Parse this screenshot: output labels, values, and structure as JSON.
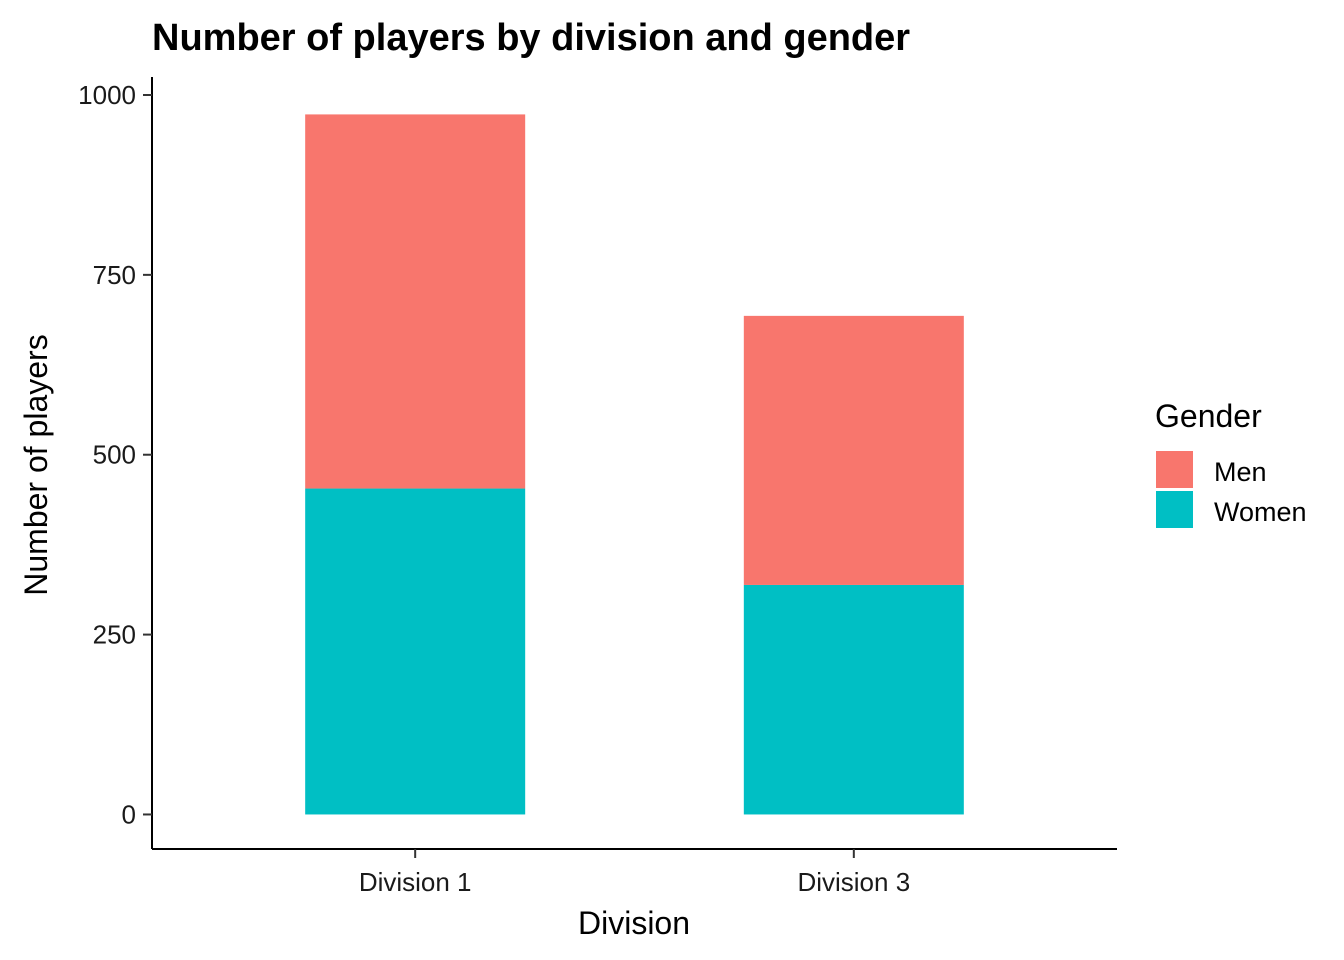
{
  "chart_data": {
    "type": "bar",
    "stacked": true,
    "title": "Number of players by division and gender",
    "xlabel": "Division",
    "ylabel": "Number of players",
    "categories": [
      "Division 1",
      "Division 3"
    ],
    "series": [
      {
        "name": "Women",
        "values": [
          453,
          319
        ],
        "color": "#00BFC4"
      },
      {
        "name": "Men",
        "values": [
          520,
          374
        ],
        "color": "#F8766D"
      }
    ],
    "ylim": [
      -48,
      1025
    ],
    "yticks": [
      0,
      250,
      500,
      750,
      1000
    ],
    "ytick_labels": [
      "0",
      "250",
      "500",
      "750",
      "1000"
    ],
    "grid": false,
    "legend": {
      "title": "Gender",
      "placement": "right",
      "items": [
        "Men",
        "Women"
      ]
    }
  }
}
